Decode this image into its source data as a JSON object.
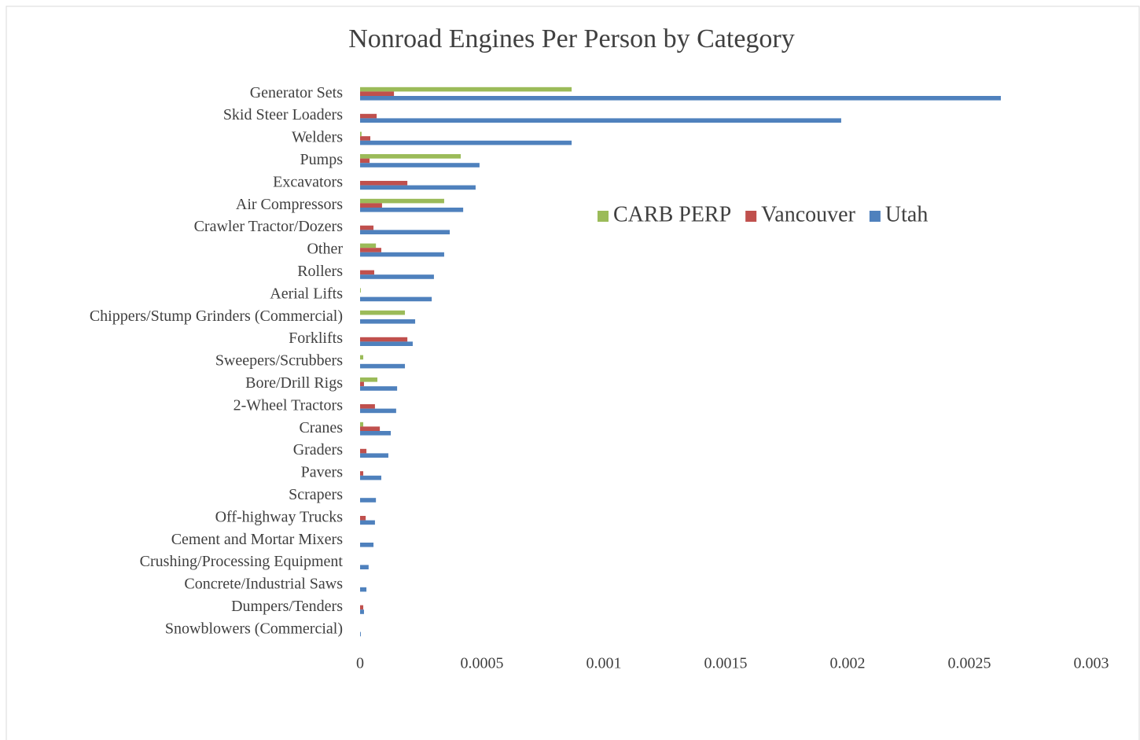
{
  "chart_data": {
    "type": "hbar",
    "title": "Nonroad Engines Per Person by Category",
    "categories": [
      "Generator Sets",
      "Skid Steer Loaders",
      "Welders",
      "Pumps",
      "Excavators",
      "Air Compressors",
      "Crawler Tractor/Dozers",
      "Other",
      "Rollers",
      "Aerial Lifts",
      "Chippers/Stump Grinders (Commercial)",
      "Forklifts",
      "Sweepers/Scrubbers",
      "Bore/Drill Rigs",
      "2-Wheel Tractors",
      "Cranes",
      "Graders",
      "Pavers",
      "Scrapers",
      "Off-highway Trucks",
      "Cement and Mortar Mixers",
      "Crushing/Processing Equipment",
      "Concrete/Industrial Saws",
      "Dumpers/Tenders",
      "Snowblowers (Commercial)"
    ],
    "series": [
      {
        "name": "CARB PERP",
        "color": "#9bbb59",
        "values": [
          0.000868,
          0,
          6e-06,
          0.000413,
          0,
          0.000345,
          0,
          6.5e-05,
          0,
          3e-06,
          0.000184,
          0,
          1.3e-05,
          7.1e-05,
          0,
          1.3e-05,
          0,
          0,
          0,
          0,
          0,
          0,
          0,
          0,
          0
        ]
      },
      {
        "name": "Vancouver",
        "color": "#c0504d",
        "values": [
          0.000139,
          6.8e-05,
          4.2e-05,
          3.9e-05,
          0.000194,
          9e-05,
          5.5e-05,
          8.7e-05,
          5.8e-05,
          0,
          0,
          0.000194,
          0,
          1.6e-05,
          6.1e-05,
          8.1e-05,
          2.6e-05,
          1.3e-05,
          0,
          2.3e-05,
          0,
          0,
          0,
          1.3e-05,
          0
        ]
      },
      {
        "name": "Utah",
        "color": "#4f81bd",
        "values": [
          0.002629,
          0.001974,
          0.000868,
          0.00049,
          0.000474,
          0.000423,
          0.000368,
          0.000345,
          0.000303,
          0.000294,
          0.000226,
          0.000216,
          0.000184,
          0.000152,
          0.000148,
          0.000126,
          0.000116,
          8.7e-05,
          6.5e-05,
          6.1e-05,
          5.5e-05,
          3.5e-05,
          2.6e-05,
          1.6e-05,
          3e-06
        ]
      }
    ],
    "xlim": [
      0,
      0.003
    ],
    "xticks": [
      0,
      0.0005,
      0.001,
      0.0015,
      0.002,
      0.0025,
      0.003
    ],
    "grid": false,
    "legend": "center-right"
  }
}
